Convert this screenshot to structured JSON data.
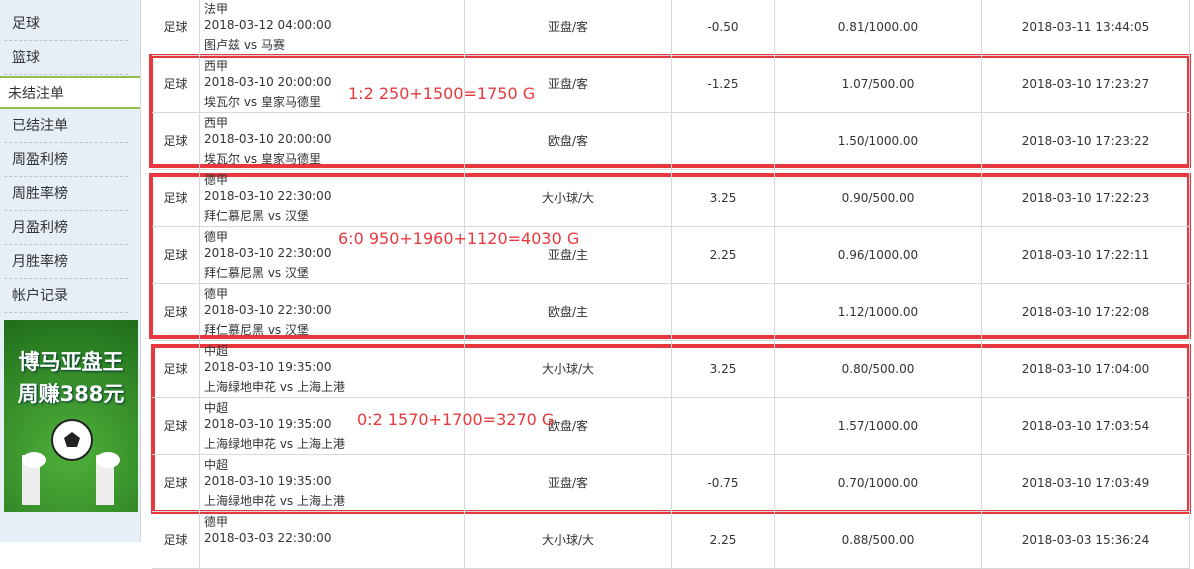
{
  "sidebar": {
    "items": [
      "足球",
      "篮球",
      "未结注单",
      "已结注单",
      "周盈利榜",
      "周胜率榜",
      "月盈利榜",
      "月胜率榜",
      "帐户记录"
    ],
    "selected": "未结注单"
  },
  "banner": {
    "lines": [
      "博马亚盘王",
      "周赚388元"
    ]
  },
  "table": {
    "rows": [
      {
        "sport": "足球",
        "league": "法甲",
        "date": "2018-03-12 04:00:00",
        "teams": "图卢兹 vs 马赛",
        "bet_type": "亚盘/客",
        "handicap": "-0.50",
        "odds": "0.81/1000.00",
        "time": "2018-03-11 13:44:05"
      },
      {
        "sport": "足球",
        "league": "西甲",
        "date": "2018-03-10 20:00:00",
        "teams": "埃瓦尔 vs 皇家马德里",
        "bet_type": "亚盘/客",
        "handicap": "-1.25",
        "odds": "1.07/500.00",
        "time": "2018-03-10 17:23:27"
      },
      {
        "sport": "足球",
        "league": "西甲",
        "date": "2018-03-10 20:00:00",
        "teams": "埃瓦尔 vs 皇家马德里",
        "bet_type": "欧盘/客",
        "odds": "1.50/1000.00",
        "time": "2018-03-10 17:23:22"
      },
      {
        "sport": "足球",
        "league": "德甲",
        "date": "2018-03-10 22:30:00",
        "teams": "拜仁慕尼黑 vs 汉堡",
        "bet_type": "大小球/大",
        "handicap": "3.25",
        "odds": "0.90/500.00",
        "time": "2018-03-10 17:22:23"
      },
      {
        "sport": "足球",
        "league": "德甲",
        "date": "2018-03-10 22:30:00",
        "teams": "拜仁慕尼黑 vs 汉堡",
        "bet_type": "亚盘/主",
        "handicap": "2.25",
        "odds": "0.96/1000.00",
        "time": "2018-03-10 17:22:11"
      },
      {
        "sport": "足球",
        "league": "德甲",
        "date": "2018-03-10 22:30:00",
        "teams": "拜仁慕尼黑 vs 汉堡",
        "bet_type": "欧盘/主",
        "odds": "1.12/1000.00",
        "time": "2018-03-10 17:22:08"
      },
      {
        "sport": "足球",
        "league": "中超",
        "date": "2018-03-10 19:35:00",
        "teams": "上海绿地申花 vs 上海上港",
        "bet_type": "大小球/大",
        "handicap": "3.25",
        "odds": "0.80/500.00",
        "time": "2018-03-10 17:04:00"
      },
      {
        "sport": "足球",
        "league": "中超",
        "date": "2018-03-10 19:35:00",
        "teams": "上海绿地申花 vs 上海上港",
        "bet_type": "欧盘/客",
        "odds": "1.57/1000.00",
        "time": "2018-03-10 17:03:54"
      },
      {
        "sport": "足球",
        "league": "中超",
        "date": "2018-03-10 19:35:00",
        "teams": "上海绿地申花 vs 上海上港",
        "bet_type": "亚盘/客",
        "handicap": "-0.75",
        "odds": "0.70/1000.00",
        "time": "2018-03-10 17:03:49"
      },
      {
        "sport": "足球",
        "league": "德甲",
        "date": "2018-03-03 22:30:00",
        "bet_type": "大小球/大",
        "handicap": "2.25",
        "odds": "0.88/500.00",
        "time": "2018-03-03 15:36:24"
      }
    ]
  },
  "annotations": [
    "1:2  250+1500=1750 G",
    "6:0  950+1960+1120=4030 G",
    "0:2  1570+1700=3270 G"
  ]
}
